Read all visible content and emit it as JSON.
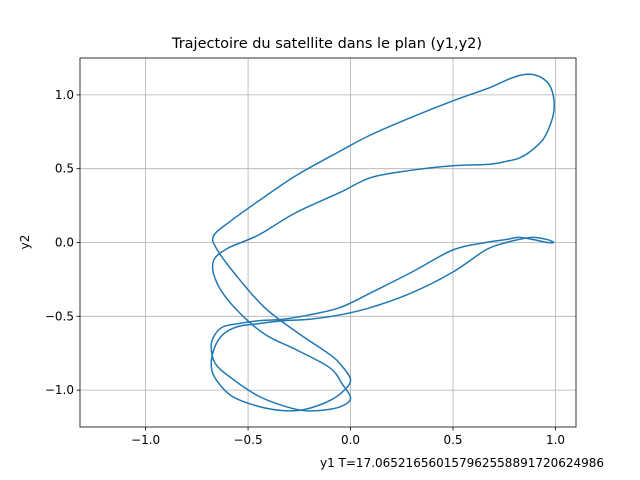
{
  "chart_data": {
    "type": "line",
    "title": "Trajectoire du satellite dans le plan (y1,y2)",
    "xlabel": "y1   T=17.065216560157962558891720624986",
    "ylabel": "y2",
    "xlim": [
      -1.32,
      1.1
    ],
    "ylim": [
      -1.25,
      1.25
    ],
    "xticks": [
      -1.0,
      -0.5,
      0.0,
      0.5,
      1.0
    ],
    "xtick_labels": [
      "−1.0",
      "−0.5",
      "0.0",
      "0.5",
      "1.0"
    ],
    "yticks": [
      -1.0,
      -0.5,
      0.0,
      0.5,
      1.0
    ],
    "ytick_labels": [
      "−1.0",
      "−0.5",
      "0.0",
      "0.5",
      "1.0"
    ],
    "grid": true,
    "legend": "none",
    "color": "#1f77b4",
    "series": [
      {
        "x": [
          0.994,
          0.96,
          0.89,
          0.82,
          0.76,
          0.66,
          0.5,
          0.3,
          0.1,
          -0.05,
          -0.2,
          -0.33,
          -0.45,
          -0.55,
          -0.62,
          -0.66,
          -0.68,
          -0.66,
          -0.58,
          -0.45,
          -0.32,
          -0.22,
          -0.1,
          -0.03,
          0.0,
          -0.04,
          -0.1,
          -0.26,
          -0.42,
          -0.56,
          -0.65,
          -0.67,
          -0.6,
          -0.45,
          -0.27,
          -0.05,
          0.1,
          0.3,
          0.5,
          0.68,
          0.76,
          0.82,
          0.88,
          0.94,
          0.98,
          0.994,
          0.98,
          0.94,
          0.88,
          0.82,
          0.76,
          0.68,
          0.5,
          0.3,
          0.1,
          -0.05,
          -0.27,
          -0.45,
          -0.6,
          -0.67,
          -0.65,
          -0.56,
          -0.42,
          -0.26,
          -0.1,
          -0.04,
          0.0,
          -0.03,
          -0.1,
          -0.22,
          -0.32,
          -0.45,
          -0.58,
          -0.66,
          -0.68,
          -0.66,
          -0.62,
          -0.55,
          -0.45,
          -0.33,
          -0.2,
          -0.05,
          0.1,
          0.3,
          0.5,
          0.66,
          0.76,
          0.82,
          0.89,
          0.96,
          0.994
        ],
        "y": [
          0.0,
          0.02,
          0.035,
          0.02,
          0.0,
          -0.05,
          -0.2,
          -0.34,
          -0.44,
          -0.49,
          -0.52,
          -0.53,
          -0.55,
          -0.57,
          -0.62,
          -0.7,
          -0.82,
          -0.92,
          -1.04,
          -1.11,
          -1.14,
          -1.13,
          -1.07,
          -1.0,
          -0.93,
          -0.84,
          -0.76,
          -0.61,
          -0.44,
          -0.22,
          -0.05,
          0.04,
          0.13,
          0.28,
          0.45,
          0.62,
          0.73,
          0.85,
          0.96,
          1.05,
          1.1,
          1.13,
          1.14,
          1.11,
          1.04,
          0.92,
          0.82,
          0.7,
          0.62,
          0.57,
          0.55,
          0.53,
          0.52,
          0.49,
          0.44,
          0.34,
          0.2,
          0.05,
          -0.04,
          -0.13,
          -0.28,
          -0.45,
          -0.62,
          -0.73,
          -0.85,
          -0.96,
          -1.05,
          -1.1,
          -1.13,
          -1.14,
          -1.11,
          -1.04,
          -0.92,
          -0.82,
          -0.7,
          -0.62,
          -0.57,
          -0.55,
          -0.53,
          -0.52,
          -0.49,
          -0.44,
          -0.34,
          -0.2,
          -0.05,
          0.0,
          0.02,
          0.035,
          0.02,
          0.0,
          0.0
        ]
      }
    ]
  }
}
